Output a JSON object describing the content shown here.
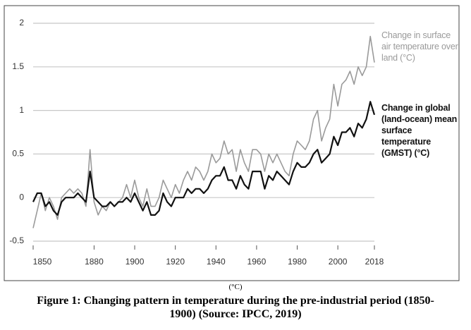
{
  "chart_data": {
    "type": "line",
    "x": [
      1850,
      1852,
      1854,
      1856,
      1858,
      1860,
      1862,
      1864,
      1866,
      1868,
      1870,
      1872,
      1874,
      1876,
      1878,
      1880,
      1882,
      1884,
      1886,
      1888,
      1890,
      1892,
      1894,
      1896,
      1898,
      1900,
      1902,
      1904,
      1906,
      1908,
      1910,
      1912,
      1914,
      1916,
      1918,
      1920,
      1922,
      1924,
      1926,
      1928,
      1930,
      1932,
      1934,
      1936,
      1938,
      1940,
      1942,
      1944,
      1946,
      1948,
      1950,
      1952,
      1954,
      1956,
      1958,
      1960,
      1962,
      1964,
      1966,
      1968,
      1970,
      1972,
      1974,
      1976,
      1978,
      1980,
      1982,
      1984,
      1986,
      1988,
      1990,
      1992,
      1994,
      1996,
      1998,
      2000,
      2002,
      2004,
      2006,
      2008,
      2010,
      2012,
      2014,
      2016,
      2018
    ],
    "series": [
      {
        "name": "Change in surface air temperature over land (°C)",
        "color": "#9a9a9a",
        "values": [
          -0.35,
          -0.15,
          0.05,
          -0.15,
          0.0,
          -0.1,
          -0.25,
          0.0,
          0.05,
          0.1,
          0.05,
          0.1,
          0.05,
          -0.1,
          0.55,
          -0.05,
          -0.2,
          -0.1,
          -0.15,
          -0.05,
          -0.1,
          -0.05,
          0.0,
          0.15,
          0.0,
          0.2,
          0.0,
          -0.1,
          0.1,
          -0.1,
          -0.1,
          0.0,
          0.2,
          0.1,
          0.0,
          0.15,
          0.05,
          0.2,
          0.3,
          0.2,
          0.35,
          0.3,
          0.2,
          0.3,
          0.5,
          0.4,
          0.45,
          0.65,
          0.5,
          0.55,
          0.3,
          0.55,
          0.4,
          0.3,
          0.55,
          0.55,
          0.5,
          0.3,
          0.5,
          0.4,
          0.5,
          0.4,
          0.3,
          0.25,
          0.5,
          0.65,
          0.6,
          0.55,
          0.65,
          0.9,
          1.0,
          0.65,
          0.8,
          0.9,
          1.3,
          1.05,
          1.3,
          1.35,
          1.45,
          1.3,
          1.5,
          1.4,
          1.5,
          1.85,
          1.55
        ]
      },
      {
        "name": "Change in global (land-ocean) mean surface temperature (GMST) (°C)",
        "color": "#111111",
        "values": [
          -0.05,
          0.05,
          0.05,
          -0.1,
          -0.05,
          -0.15,
          -0.2,
          -0.05,
          0.0,
          0.0,
          0.0,
          0.05,
          0.0,
          -0.05,
          0.3,
          0.0,
          -0.05,
          -0.1,
          -0.1,
          -0.05,
          -0.1,
          -0.05,
          -0.05,
          0.0,
          -0.05,
          0.05,
          -0.05,
          -0.15,
          -0.05,
          -0.2,
          -0.2,
          -0.15,
          0.05,
          -0.05,
          -0.1,
          0.0,
          0.0,
          0.0,
          0.1,
          0.05,
          0.1,
          0.1,
          0.05,
          0.1,
          0.2,
          0.25,
          0.25,
          0.35,
          0.2,
          0.2,
          0.1,
          0.25,
          0.15,
          0.1,
          0.3,
          0.3,
          0.3,
          0.1,
          0.25,
          0.2,
          0.3,
          0.25,
          0.2,
          0.15,
          0.3,
          0.4,
          0.35,
          0.35,
          0.4,
          0.5,
          0.55,
          0.4,
          0.45,
          0.5,
          0.7,
          0.6,
          0.75,
          0.75,
          0.8,
          0.7,
          0.85,
          0.8,
          0.9,
          1.1,
          0.95
        ]
      }
    ],
    "xlim": [
      1850,
      2018
    ],
    "xticks": [
      1850,
      1880,
      1900,
      1920,
      1940,
      1960,
      1980,
      2000,
      2018
    ],
    "ylim": [
      -0.5,
      2
    ],
    "yticks": [
      2,
      1.5,
      1,
      0.5,
      0,
      -0.5
    ],
    "grid": true,
    "note": "(°C)",
    "caption": "Figure 1: Changing pattern in temperature during the pre-industrial period (1850-1900) (Source: IPCC, 2019)"
  }
}
